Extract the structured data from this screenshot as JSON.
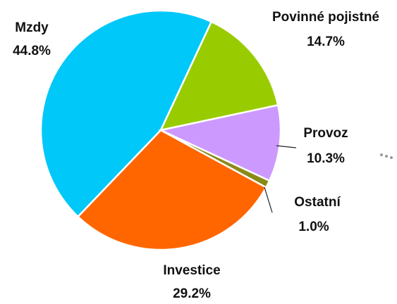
{
  "chart_data": {
    "type": "pie",
    "categories": [
      "Mzdy",
      "Povinné pojistné",
      "Provoz",
      "Ostatní",
      "Investice"
    ],
    "values": [
      44.8,
      14.7,
      10.3,
      1.0,
      29.2
    ],
    "value_labels": [
      "44.8%",
      "14.7%",
      "10.3%",
      "1.0%",
      "29.2%"
    ],
    "colors": [
      "#00c8f8",
      "#99cc00",
      "#cc99ff",
      "#8a8a1a",
      "#ff6600"
    ]
  }
}
